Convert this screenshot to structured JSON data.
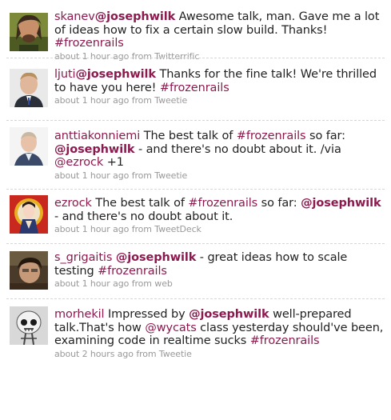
{
  "tweets": [
    {
      "avatar_icon": "avatar-skanev",
      "user": "skanev",
      "parts": [
        {
          "t": "mention",
          "v": "@josephwilk"
        },
        {
          "t": "text",
          "v": " Awesome talk, man. Gave me a lot of ideas how to fix a certain slow build. Thanks! "
        },
        {
          "t": "hashtag",
          "v": "#frozenrails"
        }
      ],
      "time": "about 1 hour ago",
      "from_label": "from",
      "source": "Twitterrific"
    },
    {
      "avatar_icon": "avatar-ljuti",
      "user": "ljuti",
      "parts": [
        {
          "t": "mention",
          "v": "@josephwilk"
        },
        {
          "t": "text",
          "v": " Thanks for the fine talk! We're thrilled to have you here! "
        },
        {
          "t": "hashtag",
          "v": "#frozenrails"
        }
      ],
      "time": "about 1 hour ago",
      "from_label": "from",
      "source": "Tweetie"
    },
    {
      "avatar_icon": "avatar-anttiakonniemi",
      "user": "anttiakonniemi",
      "parts": [
        {
          "t": "text",
          "v": " The best talk of "
        },
        {
          "t": "hashtag",
          "v": "#frozenrails"
        },
        {
          "t": "text",
          "v": " so far: "
        },
        {
          "t": "mention",
          "v": "@josephwilk"
        },
        {
          "t": "text",
          "v": " - and there's no doubt about it. /via "
        },
        {
          "t": "mentionplain",
          "v": "@ezrock"
        },
        {
          "t": "text",
          "v": " +1"
        }
      ],
      "time": "about 1 hour ago",
      "from_label": "from",
      "source": "Tweetie"
    },
    {
      "avatar_icon": "avatar-ezrock",
      "user": "ezrock",
      "parts": [
        {
          "t": "text",
          "v": " The best talk of "
        },
        {
          "t": "hashtag",
          "v": "#frozenrails"
        },
        {
          "t": "text",
          "v": " so far: "
        },
        {
          "t": "mention",
          "v": "@josephwilk"
        },
        {
          "t": "text",
          "v": " - and there's no doubt about it."
        }
      ],
      "time": "about 1 hour ago",
      "from_label": "from",
      "source": "TweetDeck"
    },
    {
      "avatar_icon": "avatar-s-grigaitis",
      "user": "s_grigaitis",
      "parts": [
        {
          "t": "text",
          "v": " "
        },
        {
          "t": "mention",
          "v": "@josephwilk"
        },
        {
          "t": "text",
          "v": " - great ideas how to scale testing "
        },
        {
          "t": "hashtag",
          "v": "#frozenrails"
        }
      ],
      "time": "about 1 hour ago",
      "from_label": "from",
      "source": "web"
    },
    {
      "avatar_icon": "avatar-morhekil",
      "user": "morhekil",
      "parts": [
        {
          "t": "text",
          "v": " Impressed by "
        },
        {
          "t": "mention",
          "v": "@josephwilk"
        },
        {
          "t": "text",
          "v": " well-prepared talk.That's how "
        },
        {
          "t": "mentionplain",
          "v": "@wycats"
        },
        {
          "t": "text",
          "v": " class yesterday should've been, examining code in realtime sucks "
        },
        {
          "t": "hashtag",
          "v": "#frozenrails"
        }
      ],
      "time": "about 2 hours ago",
      "from_label": "from",
      "source": "Tweetie"
    }
  ]
}
